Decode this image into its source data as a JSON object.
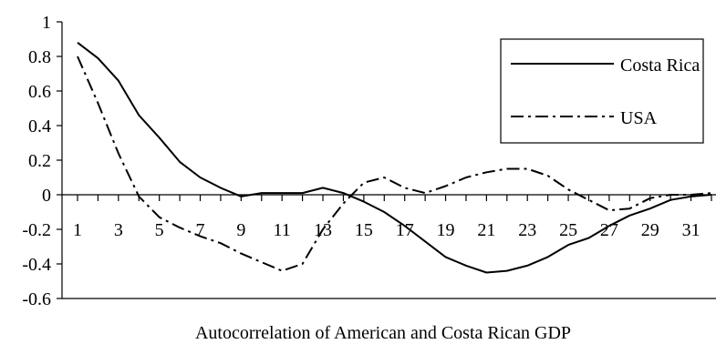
{
  "chart_data": {
    "type": "line",
    "title": "",
    "caption": "Autocorrelation of American and Costa Rican GDP",
    "xlabel": "",
    "ylabel": "",
    "x": [
      1,
      2,
      3,
      4,
      5,
      6,
      7,
      8,
      9,
      10,
      11,
      12,
      13,
      14,
      15,
      16,
      17,
      18,
      19,
      20,
      21,
      22,
      23,
      24,
      25,
      26,
      27,
      28,
      29,
      30,
      31,
      32
    ],
    "x_tick_labels": [
      "1",
      "3",
      "5",
      "7",
      "9",
      "11",
      "13",
      "15",
      "17",
      "19",
      "21",
      "23",
      "25",
      "27",
      "29",
      "31"
    ],
    "y_tick_labels": [
      "1",
      "0.8",
      "0.6",
      "0.4",
      "0.2",
      "0",
      "-0.2",
      "-0.4",
      "-0.6"
    ],
    "xlim": [
      1,
      32
    ],
    "ylim": [
      -0.6,
      1
    ],
    "grid": false,
    "legend_position": "top-right",
    "series": [
      {
        "name": "Costa Rica",
        "style": "solid",
        "color": "#000000",
        "values": [
          0.88,
          0.79,
          0.66,
          0.46,
          0.33,
          0.19,
          0.1,
          0.04,
          -0.01,
          0.01,
          0.01,
          0.01,
          0.04,
          0.01,
          -0.04,
          -0.1,
          -0.18,
          -0.27,
          -0.36,
          -0.41,
          -0.45,
          -0.44,
          -0.41,
          -0.36,
          -0.29,
          -0.25,
          -0.18,
          -0.12,
          -0.08,
          -0.03,
          -0.01,
          0.0
        ]
      },
      {
        "name": "USA",
        "style": "dash-dot",
        "color": "#000000",
        "values": [
          0.8,
          0.53,
          0.24,
          -0.01,
          -0.13,
          -0.19,
          -0.24,
          -0.28,
          -0.34,
          -0.39,
          -0.44,
          -0.4,
          -0.2,
          -0.05,
          0.07,
          0.1,
          0.04,
          0.01,
          0.05,
          0.1,
          0.13,
          0.15,
          0.15,
          0.11,
          0.03,
          -0.03,
          -0.09,
          -0.08,
          -0.02,
          0.0,
          0.0,
          0.01
        ]
      }
    ]
  }
}
